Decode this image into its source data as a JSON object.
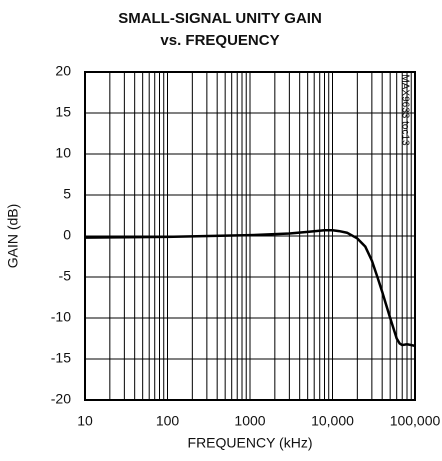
{
  "chart_data": {
    "type": "line",
    "title": "SMALL-SIGNAL UNITY GAIN",
    "subtitle": "vs. FREQUENCY",
    "xlabel": "FREQUENCY (kHz)",
    "ylabel": "GAIN (dB)",
    "annotation": "MAX9633 toc13",
    "xscale": "log",
    "grid": true,
    "xlim": [
      10,
      100000
    ],
    "xticks": [
      10,
      100,
      1000,
      {
        "value": 10000,
        "label": "10,000"
      },
      {
        "value": 100000,
        "label": "100,000"
      }
    ],
    "ylim": [
      -20,
      20
    ],
    "yticks": [
      -20,
      -15,
      -10,
      -5,
      0,
      5,
      10,
      15,
      20
    ],
    "x": [
      10,
      100,
      1000,
      3000,
      5000,
      8000,
      10000,
      12000,
      15000,
      20000,
      25000,
      30000,
      35000,
      40000,
      50000,
      60000,
      65000,
      70000,
      80000,
      90000,
      100000
    ],
    "series": [
      {
        "color": "#000000",
        "values": [
          -0.2,
          -0.1,
          0.1,
          0.3,
          0.5,
          0.7,
          0.7,
          0.6,
          0.4,
          -0.3,
          -1.3,
          -3,
          -5,
          -6.8,
          -10,
          -12.5,
          -13.1,
          -13.3,
          -13.2,
          -13.3,
          -13.4
        ]
      }
    ]
  }
}
